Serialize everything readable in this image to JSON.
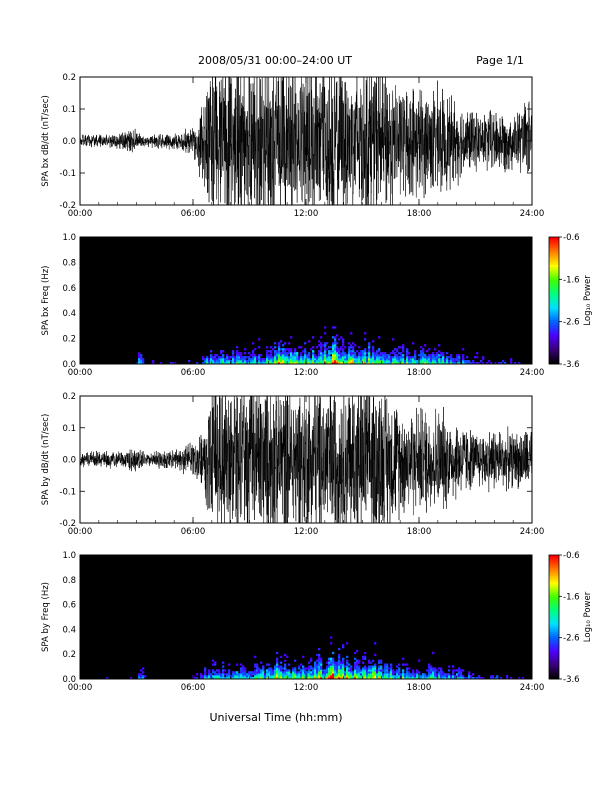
{
  "header": {
    "title": "2008/05/31   00:00–24:00 UT",
    "page": "Page 1/1"
  },
  "xlabel": "Universal Time (hh:mm)",
  "chart_data": [
    {
      "type": "line",
      "ylabel": "SPA bx dB/dt (nT/sec)",
      "xlim": [
        0,
        24
      ],
      "ylim": [
        -0.2,
        0.2
      ],
      "xticks": [
        "00:00",
        "06:00",
        "12:00",
        "18:00",
        "24:00"
      ],
      "yticks": [
        "-0.2",
        "-0.1",
        "0.0",
        "0.1",
        "0.2"
      ],
      "envelope": {
        "t_hours": [
          0,
          1,
          2,
          3,
          3.5,
          4,
          5,
          6,
          6.5,
          7,
          8,
          9,
          10,
          11,
          12,
          13,
          14,
          15,
          16,
          17,
          18,
          19,
          20,
          21,
          22,
          23,
          24
        ],
        "amplitude": [
          0.025,
          0.02,
          0.03,
          0.045,
          0.02,
          0.025,
          0.03,
          0.05,
          0.15,
          0.3,
          0.3,
          0.3,
          0.3,
          0.3,
          0.28,
          0.3,
          0.3,
          0.3,
          0.3,
          0.2,
          0.2,
          0.2,
          0.15,
          0.1,
          0.12,
          0.1,
          0.15
        ]
      }
    },
    {
      "type": "heatmap",
      "ylabel": "SPA bx Freq (Hz)",
      "xlim": [
        0,
        24
      ],
      "ylim": [
        0,
        1.0
      ],
      "xticks": [
        "00:00",
        "06:00",
        "12:00",
        "18:00",
        "24:00"
      ],
      "yticks": [
        "0.0",
        "0.2",
        "0.4",
        "0.6",
        "0.8",
        "1.0"
      ],
      "colorbar": {
        "label": "Log₁₀ Power",
        "range": [
          -3.6,
          -0.6
        ],
        "ticks": [
          "-0.6",
          "-1.6",
          "-2.6",
          "-3.6"
        ],
        "colors": [
          "#000000",
          "#3a007a",
          "#4b00ff",
          "#0064ff",
          "#00e0ff",
          "#00ff80",
          "#40ff00",
          "#ffff00",
          "#ff8000",
          "#ff0000"
        ]
      },
      "activity": {
        "t_hours": [
          0,
          3,
          3.2,
          3.5,
          6,
          7,
          8,
          10,
          10.5,
          11,
          12,
          13,
          13.5,
          14,
          14.5,
          15,
          15.5,
          16,
          16.5,
          17,
          18,
          19,
          20,
          21,
          22,
          24
        ],
        "level": [
          0.1,
          0.15,
          0.6,
          0.15,
          0.2,
          0.55,
          0.5,
          0.6,
          0.85,
          0.7,
          0.7,
          0.8,
          1.0,
          0.85,
          0.7,
          0.75,
          0.85,
          0.7,
          0.65,
          0.6,
          0.55,
          0.6,
          0.45,
          0.3,
          0.25,
          0.15
        ]
      }
    },
    {
      "type": "line",
      "ylabel": "SPA by dB/dt (nT/sec)",
      "xlim": [
        0,
        24
      ],
      "ylim": [
        -0.2,
        0.2
      ],
      "xticks": [
        "00:00",
        "06:00",
        "12:00",
        "18:00",
        "24:00"
      ],
      "yticks": [
        "-0.2",
        "-0.1",
        "0.0",
        "0.1",
        "0.2"
      ],
      "envelope": {
        "t_hours": [
          0,
          1,
          2,
          3,
          3.5,
          4,
          5,
          6,
          6.5,
          7,
          8,
          9,
          10,
          11,
          12,
          13,
          14,
          15,
          16,
          17,
          18,
          19,
          20,
          21,
          22,
          23,
          24
        ],
        "amplitude": [
          0.025,
          0.03,
          0.03,
          0.05,
          0.02,
          0.03,
          0.035,
          0.06,
          0.12,
          0.3,
          0.3,
          0.3,
          0.3,
          0.3,
          0.3,
          0.3,
          0.3,
          0.3,
          0.3,
          0.2,
          0.2,
          0.2,
          0.15,
          0.1,
          0.12,
          0.1,
          0.12
        ]
      }
    },
    {
      "type": "heatmap",
      "ylabel": "SPA by Freq (Hz)",
      "xlim": [
        0,
        24
      ],
      "ylim": [
        0,
        1.0
      ],
      "xticks": [
        "00:00",
        "06:00",
        "12:00",
        "18:00",
        "24:00"
      ],
      "yticks": [
        "0.0",
        "0.2",
        "0.4",
        "0.6",
        "0.8",
        "1.0"
      ],
      "colorbar": {
        "label": "Log₁₀ Power",
        "range": [
          -3.6,
          -0.6
        ],
        "ticks": [
          "-0.6",
          "-1.6",
          "-2.6",
          "-3.6"
        ],
        "colors": [
          "#000000",
          "#3a007a",
          "#4b00ff",
          "#0064ff",
          "#00e0ff",
          "#00ff80",
          "#40ff00",
          "#ffff00",
          "#ff8000",
          "#ff0000"
        ]
      },
      "activity": {
        "t_hours": [
          0,
          3,
          3.2,
          3.5,
          6,
          7,
          8,
          10,
          10.5,
          11,
          12,
          13,
          13.5,
          14,
          14.5,
          15,
          15.5,
          16,
          16.5,
          17,
          18,
          19,
          20,
          21,
          22,
          24
        ],
        "level": [
          0.1,
          0.15,
          0.6,
          0.15,
          0.2,
          0.55,
          0.5,
          0.6,
          0.85,
          0.7,
          0.7,
          0.8,
          1.0,
          0.85,
          0.7,
          0.75,
          0.85,
          0.7,
          0.65,
          0.6,
          0.55,
          0.6,
          0.45,
          0.3,
          0.25,
          0.15
        ]
      }
    }
  ]
}
